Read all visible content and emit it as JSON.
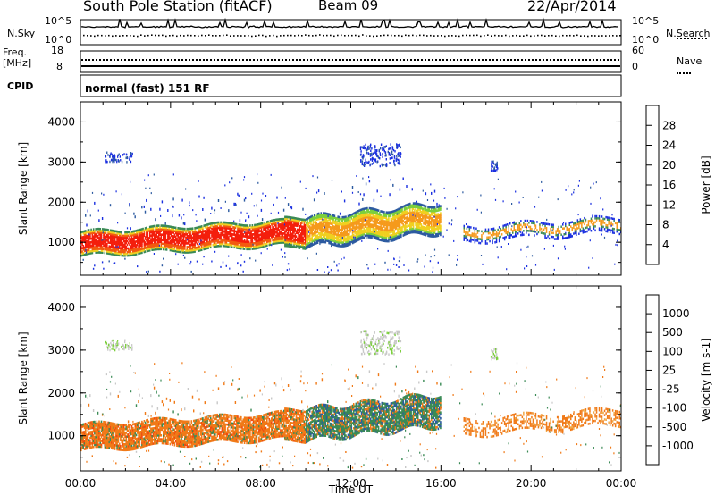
{
  "header": {
    "station": "South Pole Station (fitACF)",
    "beam": "Beam 09",
    "date": "22/Apr/2014"
  },
  "noise_panel": {
    "left_label": "N.Sky",
    "left_ticks": [
      "10^5",
      "10^0"
    ],
    "right_label": "N.Search",
    "right_ticks": [
      "10^5",
      "10^0"
    ]
  },
  "freq_panel": {
    "left_label_1": "Freq.",
    "left_label_2": "[MHz]",
    "left_ticks": [
      "18",
      "8"
    ],
    "right_label": "Nave",
    "right_ticks": [
      "60",
      "0"
    ]
  },
  "cpid_panel": {
    "label": "CPID",
    "text": "normal (fast) 151 RF"
  },
  "colors": {
    "axis": "#000000",
    "power_scale": [
      "#1a2fe0",
      "#2c5aa0",
      "#3a8a55",
      "#7ccf3c",
      "#f0d020",
      "#f59a1c",
      "#f25a10",
      "#f41e0c"
    ],
    "velocity_scale": [
      "#f01010",
      "#f04a10",
      "#f07a18",
      "#f0a848",
      "#c8c8c8",
      "#7ccf3c",
      "#3a8a55",
      "#2c5aa0",
      "#1a3ec8"
    ]
  },
  "chart_data": [
    {
      "type": "heatmap",
      "quantity": "Power",
      "ylabel": "Slant Range [km]",
      "yticks": [
        "4000",
        "3000",
        "2000",
        "1000"
      ],
      "ylim": [
        180,
        4500
      ],
      "xlim_hours": [
        0,
        24
      ],
      "xticks": [
        "00:00",
        "04:00",
        "08:00",
        "12:00",
        "16:00",
        "20:00",
        "00:00"
      ],
      "colorbar": {
        "label": "Power [dB]",
        "ticks": [
          "28",
          "24",
          "20",
          "16",
          "12",
          "8",
          "4"
        ]
      },
      "regions": [
        {
          "t": [
            0.0,
            16.0
          ],
          "r": [
            750,
            1750
          ],
          "value": "20-28 dB",
          "note": "main echo band, rising from ~1000 km to ~1600 km"
        },
        {
          "t": [
            10.0,
            16.0
          ],
          "r": [
            1400,
            2100
          ],
          "value": "12-20 dB"
        },
        {
          "t": [
            12.5,
            14.0
          ],
          "r": [
            2900,
            3500
          ],
          "value": "4-8 dB"
        },
        {
          "t": [
            18.2,
            18.6
          ],
          "r": [
            2800,
            3000
          ],
          "value": "4-8 dB"
        },
        {
          "t": [
            17.0,
            24.0
          ],
          "r": [
            900,
            1800
          ],
          "value": "4-16 dB"
        }
      ]
    },
    {
      "type": "heatmap",
      "quantity": "Velocity",
      "ylabel": "Slant Range [km]",
      "yticks": [
        "4000",
        "3000",
        "2000",
        "1000"
      ],
      "ylim": [
        180,
        4500
      ],
      "xlim_hours": [
        0,
        24
      ],
      "xlabel": "Time UT",
      "xticks": [
        "00:00",
        "04:00",
        "08:00",
        "12:00",
        "16:00",
        "20:00",
        "00:00"
      ],
      "colorbar": {
        "label": "Velocity [m s-1]",
        "ticks": [
          "1000",
          "500",
          "100",
          "25",
          "-25",
          "-100",
          "-500",
          "-1000"
        ]
      },
      "regions": [
        {
          "t": [
            0.0,
            10.0
          ],
          "r": [
            800,
            1600
          ],
          "value": "-100 to -500 m/s"
        },
        {
          "t": [
            10.0,
            16.0
          ],
          "r": [
            1000,
            2100
          ],
          "value": "100 to 500 m/s"
        },
        {
          "t": [
            12.5,
            14.0
          ],
          "r": [
            2900,
            3500
          ],
          "value": "-25 to 25 m/s"
        },
        {
          "t": [
            17.0,
            24.0
          ],
          "r": [
            900,
            1800
          ],
          "value": "-100 to -500 m/s"
        }
      ]
    }
  ]
}
